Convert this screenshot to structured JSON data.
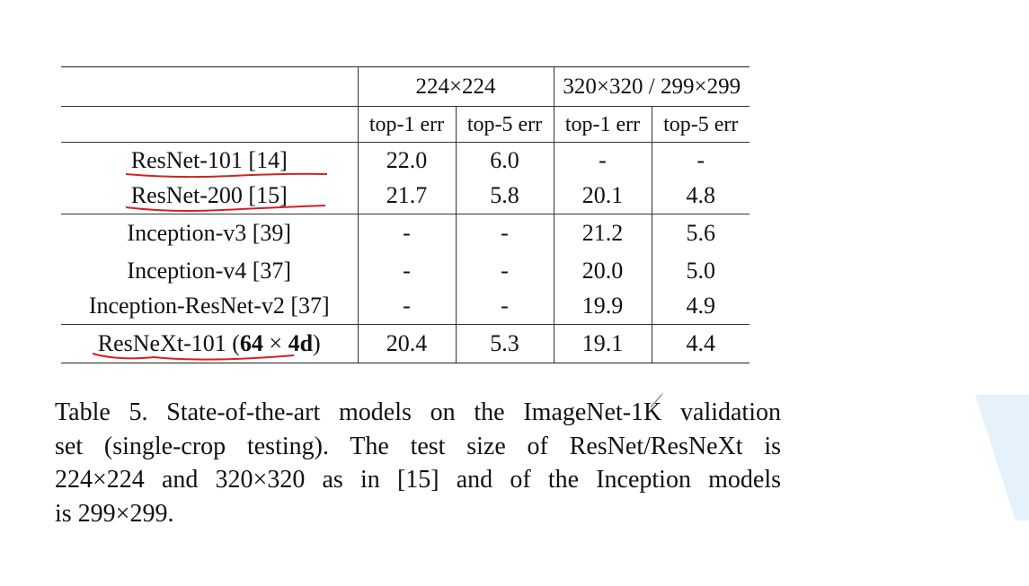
{
  "table": {
    "group_headers": [
      "224×224",
      "320×320 / 299×299"
    ],
    "sub_headers": [
      "top-1 err",
      "top-5 err",
      "top-1 err",
      "top-5 err"
    ],
    "rows": [
      {
        "model": "ResNet-101 [14]",
        "values": [
          "22.0",
          "6.0",
          "-",
          "-"
        ]
      },
      {
        "model": "ResNet-200 [15]",
        "values": [
          "21.7",
          "5.8",
          "20.1",
          "4.8"
        ]
      },
      {
        "model": "Inception-v3 [39]",
        "values": [
          "-",
          "-",
          "21.2",
          "5.6"
        ]
      },
      {
        "model": "Inception-v4 [37]",
        "values": [
          "-",
          "-",
          "20.0",
          "5.0"
        ]
      },
      {
        "model": "Inception-ResNet-v2 [37]",
        "values": [
          "-",
          "-",
          "19.9",
          "4.9"
        ]
      }
    ],
    "last_row": {
      "model_prefix": "ResNeXt-101 (",
      "model_bold": "64",
      "model_times": " × ",
      "model_bold2": "4d",
      "model_suffix": ")",
      "values": [
        "20.4",
        "5.3",
        "19.1",
        "4.4"
      ]
    }
  },
  "caption": {
    "lines": [
      "Table 5. State-of-the-art models on the ImageNet-1K validation",
      "set (single-crop testing).  The test size of ResNet/ResNeXt is",
      "224×224 and 320×320 as in [15] and of the Inception models",
      "is 299×299."
    ]
  },
  "colors": {
    "annotation_underline": "#d42020",
    "deco_shape": "#e6f2fb"
  }
}
